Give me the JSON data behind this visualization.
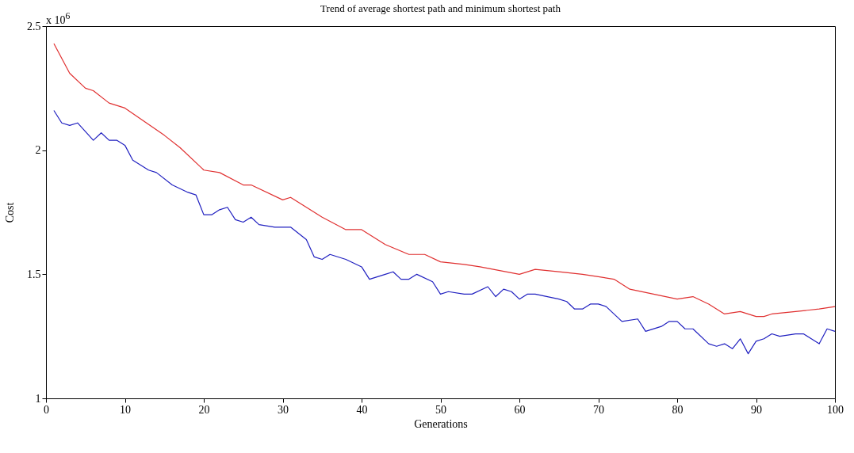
{
  "chart_data": {
    "type": "line",
    "title": "Trend of average shortest path and minimum shortest path",
    "xlabel": "Generations",
    "ylabel": "Cost",
    "annotations": [
      "x 10$^{6}$"
    ],
    "xlim": [
      0,
      100
    ],
    "xticks": [
      0,
      10,
      20,
      30,
      40,
      50,
      60,
      70,
      80,
      90,
      100
    ],
    "ylim": [
      1,
      2.5
    ],
    "yticks": [
      1,
      1.5,
      2,
      2.5
    ],
    "grid": false,
    "marker": "none",
    "line_style": "solid",
    "series": [
      {
        "color": "#e03030",
        "x": [
          1,
          3,
          5,
          6,
          8,
          10,
          15,
          17,
          20,
          22,
          25,
          26,
          30,
          31,
          35,
          38,
          40,
          43,
          46,
          48,
          50,
          53,
          55,
          60,
          62,
          65,
          68,
          70,
          72,
          74,
          77,
          80,
          82,
          84,
          86,
          88,
          90,
          91,
          92,
          95,
          98,
          100
        ],
        "values": [
          2.43,
          2.31,
          2.25,
          2.24,
          2.19,
          2.17,
          2.06,
          2.01,
          1.92,
          1.91,
          1.86,
          1.86,
          1.8,
          1.81,
          1.73,
          1.68,
          1.68,
          1.62,
          1.58,
          1.58,
          1.55,
          1.54,
          1.53,
          1.5,
          1.52,
          1.51,
          1.5,
          1.49,
          1.48,
          1.44,
          1.42,
          1.4,
          1.41,
          1.38,
          1.34,
          1.35,
          1.33,
          1.33,
          1.34,
          1.35,
          1.36,
          1.37
        ]
      },
      {
        "color": "#2020c0",
        "x": [
          1,
          2,
          3,
          4,
          6,
          7,
          8,
          9,
          10,
          11,
          13,
          14,
          16,
          18,
          19,
          20,
          21,
          22,
          23,
          24,
          25,
          26,
          27,
          29,
          30,
          31,
          33,
          34,
          35,
          36,
          38,
          40,
          41,
          43,
          44,
          45,
          46,
          47,
          49,
          50,
          51,
          53,
          54,
          56,
          57,
          58,
          59,
          60,
          61,
          62,
          65,
          66,
          67,
          68,
          69,
          70,
          71,
          73,
          75,
          76,
          78,
          79,
          80,
          81,
          82,
          84,
          85,
          86,
          87,
          88,
          89,
          90,
          91,
          92,
          93,
          95,
          96,
          97,
          98,
          99,
          100
        ],
        "values": [
          2.16,
          2.11,
          2.1,
          2.11,
          2.04,
          2.07,
          2.04,
          2.04,
          2.02,
          1.96,
          1.92,
          1.91,
          1.86,
          1.83,
          1.82,
          1.74,
          1.74,
          1.76,
          1.77,
          1.72,
          1.71,
          1.73,
          1.7,
          1.69,
          1.69,
          1.69,
          1.64,
          1.57,
          1.56,
          1.58,
          1.56,
          1.53,
          1.48,
          1.5,
          1.51,
          1.48,
          1.48,
          1.5,
          1.47,
          1.42,
          1.43,
          1.42,
          1.42,
          1.45,
          1.41,
          1.44,
          1.43,
          1.4,
          1.42,
          1.42,
          1.4,
          1.39,
          1.36,
          1.36,
          1.38,
          1.38,
          1.37,
          1.31,
          1.32,
          1.27,
          1.29,
          1.31,
          1.31,
          1.28,
          1.28,
          1.22,
          1.21,
          1.22,
          1.2,
          1.24,
          1.18,
          1.23,
          1.24,
          1.26,
          1.25,
          1.26,
          1.26,
          1.24,
          1.22,
          1.28,
          1.27
        ]
      }
    ]
  }
}
